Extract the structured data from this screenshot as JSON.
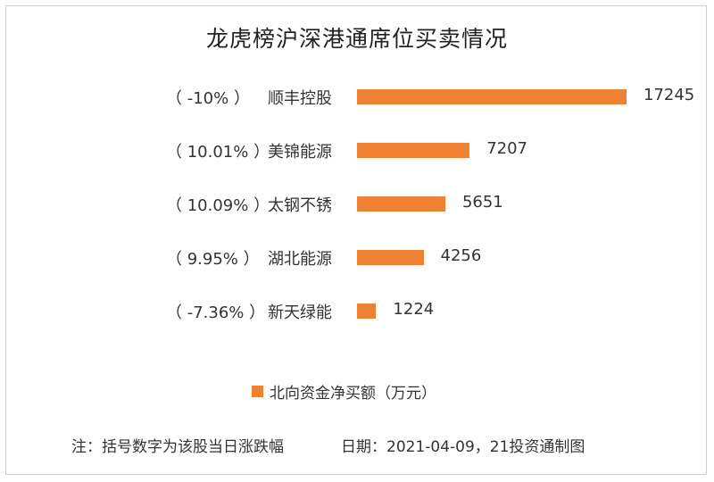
{
  "chart_data": {
    "type": "bar",
    "orientation": "horizontal",
    "title": "龙虎榜沪深港通席位买卖情况",
    "categories": [
      "顺丰控股",
      "美锦能源",
      "太钢不锈",
      "湖北能源",
      "新天绿能"
    ],
    "change_labels": [
      "（ -10% ）",
      "（ 10.01% ）",
      "（ 10.09% ）",
      "（ 9.95% ）",
      "（ -7.36% ）"
    ],
    "series": [
      {
        "name": "北向资金净买额（万元）",
        "values": [
          17245,
          7207,
          5651,
          4256,
          1224
        ]
      }
    ],
    "xlim": [
      0,
      17245
    ],
    "grid": false,
    "legend_position": "bottom-center",
    "bar_color": "#ef8133"
  },
  "footnote": "注：括号数字为该股当日涨跌幅",
  "source": "日期：2021-04-09，21投资通制图"
}
